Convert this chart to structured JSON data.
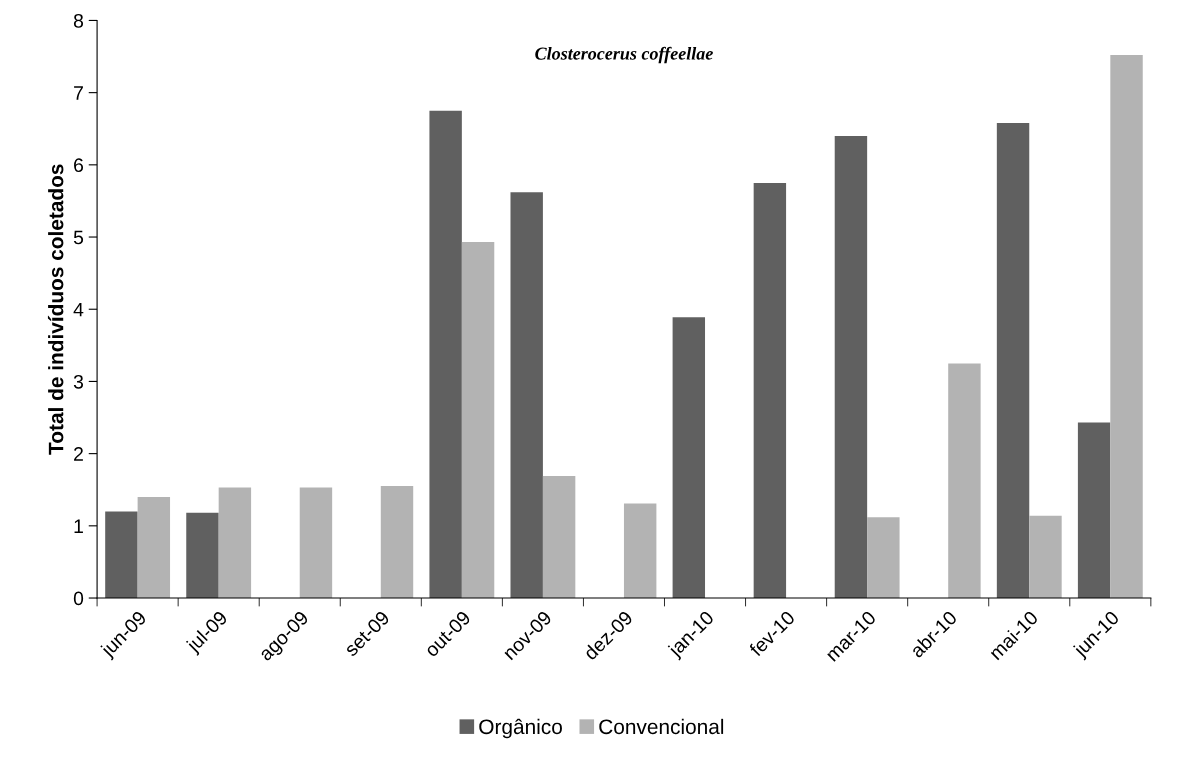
{
  "chart_data": {
    "type": "bar",
    "title": "Closterocerus coffeellae",
    "ylabel": "Total de indivíduos coletados",
    "categories": [
      "jun-09",
      "jul-09",
      "ago-09",
      "set-09",
      "out-09",
      "nov-09",
      "dez-09",
      "jan-10",
      "fev-10",
      "mar-10",
      "abr-10",
      "mai-10",
      "jun-10"
    ],
    "series": [
      {
        "name": "Orgânico",
        "color": "#606060",
        "values": [
          1.2,
          1.18,
          null,
          null,
          6.75,
          5.62,
          null,
          3.89,
          5.75,
          6.4,
          null,
          6.58,
          2.43
        ]
      },
      {
        "name": "Convencional",
        "color": "#b3b3b3",
        "values": [
          1.4,
          1.53,
          1.53,
          1.55,
          4.93,
          1.69,
          1.31,
          null,
          null,
          1.12,
          3.25,
          1.14,
          7.52
        ]
      }
    ],
    "ylim": [
      0,
      8
    ],
    "yticks": [
      0,
      1,
      2,
      3,
      4,
      5,
      6,
      7,
      8
    ],
    "legend": "bottom",
    "grid": false
  }
}
